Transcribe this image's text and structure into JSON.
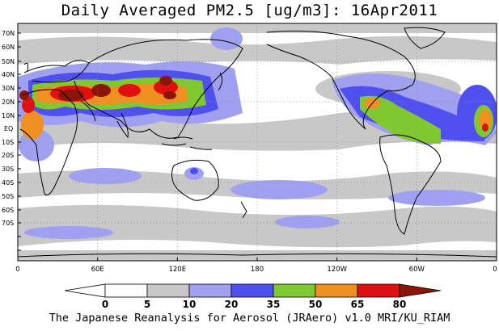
{
  "title": "Daily Averaged PM2.5 [ug/m3]: 16Apr2011",
  "footer": "The Japanese Reanalysis for Aerosol (JRAero) v1.0 MRI/KU_RIAM",
  "lat_labels": [
    "70N",
    "60N",
    "50N",
    "40N",
    "30N",
    "20N",
    "10N",
    "EQ",
    "10S",
    "20S",
    "30S",
    "40S",
    "50S",
    "60S",
    "70S"
  ],
  "lon_labels": [
    "0",
    "60E",
    "120E",
    "180",
    "120W",
    "60W",
    "0"
  ],
  "legend": {
    "labels": [
      "0",
      "5",
      "10",
      "20",
      "35",
      "50",
      "65",
      "80"
    ],
    "colors": [
      "#ffffff",
      "#c8c8c8",
      "#a0a0f0",
      "#5050f0",
      "#80c830",
      "#f09020",
      "#e01010",
      "#8b1508"
    ]
  }
}
